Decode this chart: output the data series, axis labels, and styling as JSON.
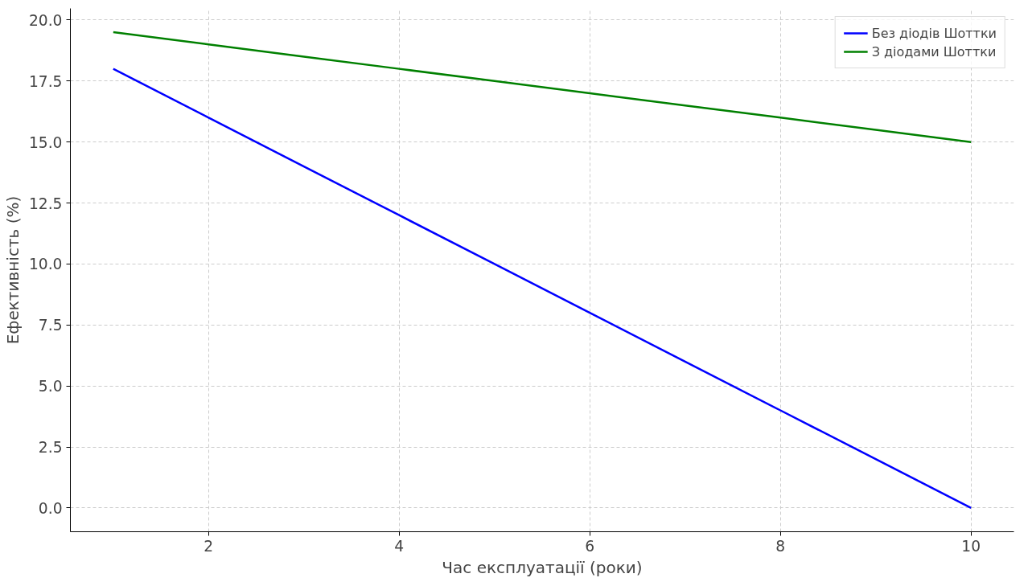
{
  "chart_data": {
    "type": "line",
    "xlabel": "Час експлуатації (роки)",
    "ylabel": "Ефективність (%)",
    "x": [
      1,
      2,
      3,
      4,
      5,
      6,
      7,
      8,
      9,
      10
    ],
    "series": [
      {
        "name": "Без діодів Шоттки",
        "color": "#0000ff",
        "values": [
          18,
          16,
          14,
          12,
          10,
          8,
          6,
          4,
          2,
          0
        ]
      },
      {
        "name": "З діодами Шоттки",
        "color": "#008000",
        "values": [
          19.5,
          19,
          18.5,
          18,
          17.5,
          17,
          16.5,
          16,
          15.5,
          15
        ]
      }
    ],
    "xlim": [
      0.55,
      10.45
    ],
    "ylim": [
      -0.975,
      20.475
    ],
    "xticks": [
      2,
      4,
      6,
      8,
      10
    ],
    "yticks": [
      {
        "value": 0,
        "label": "0.0"
      },
      {
        "value": 2.5,
        "label": "2.5"
      },
      {
        "value": 5,
        "label": "5.0"
      },
      {
        "value": 7.5,
        "label": "7.5"
      },
      {
        "value": 10,
        "label": "10.0"
      },
      {
        "value": 12.5,
        "label": "12.5"
      },
      {
        "value": 15,
        "label": "15.0"
      },
      {
        "value": 17.5,
        "label": "17.5"
      },
      {
        "value": 20,
        "label": "20.0"
      }
    ],
    "grid": true,
    "legend": "top right",
    "line_style": "solid",
    "marker": "none"
  }
}
